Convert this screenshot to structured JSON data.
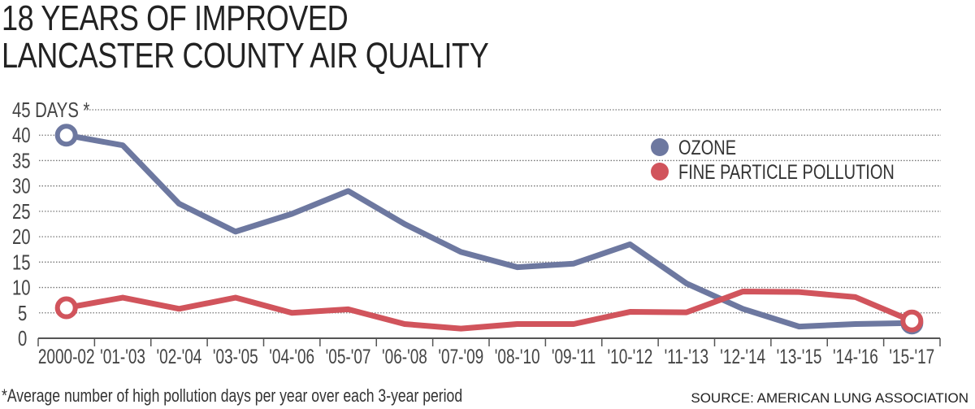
{
  "title_lines": [
    "18 YEARS OF IMPROVED",
    "LANCASTER COUNTY AIR QUALITY"
  ],
  "footnote": "*Average number of high pollution days per year over each 3-year period",
  "source": "SOURCE: AMERICAN LUNG ASSOCIATION",
  "chart_data": {
    "type": "line",
    "title": "18 YEARS OF IMPROVED LANCASTER COUNTY AIR QUALITY",
    "ylabel": "DAYS *",
    "ylim": [
      0,
      45
    ],
    "yticks": [
      0,
      5,
      10,
      15,
      20,
      25,
      30,
      35,
      40,
      45
    ],
    "ytick_labels": [
      "0",
      "5",
      "10",
      "15",
      "20",
      "25",
      "30",
      "35",
      "40",
      "45 DAYS *"
    ],
    "grid": true,
    "legend_placement": "top-right",
    "categories": [
      "2000-02",
      "'01-'03",
      "'02-'04",
      "'03-'05",
      "'04-'06",
      "'05-'07",
      "'06-'08",
      "'07-'09",
      "'08-'10",
      "'09-'11",
      "'10-'12",
      "'11-'13",
      "'12-'14",
      "'13-'15",
      "'14-'16",
      "'15-'17"
    ],
    "series": [
      {
        "name": "OZONE",
        "color": "#6d78a0",
        "values": [
          40,
          38,
          26.5,
          21,
          24.5,
          29,
          22.5,
          17,
          14,
          14.7,
          18.5,
          10.8,
          5.8,
          2.3,
          2.8,
          3
        ]
      },
      {
        "name": "FINE PARTICLE POLLUTION",
        "color": "#d1545c",
        "values": [
          6,
          8,
          5.8,
          8,
          5,
          5.7,
          2.8,
          1.9,
          2.8,
          2.8,
          5.2,
          5.1,
          9.2,
          9.1,
          8.1,
          3.4
        ]
      }
    ]
  }
}
